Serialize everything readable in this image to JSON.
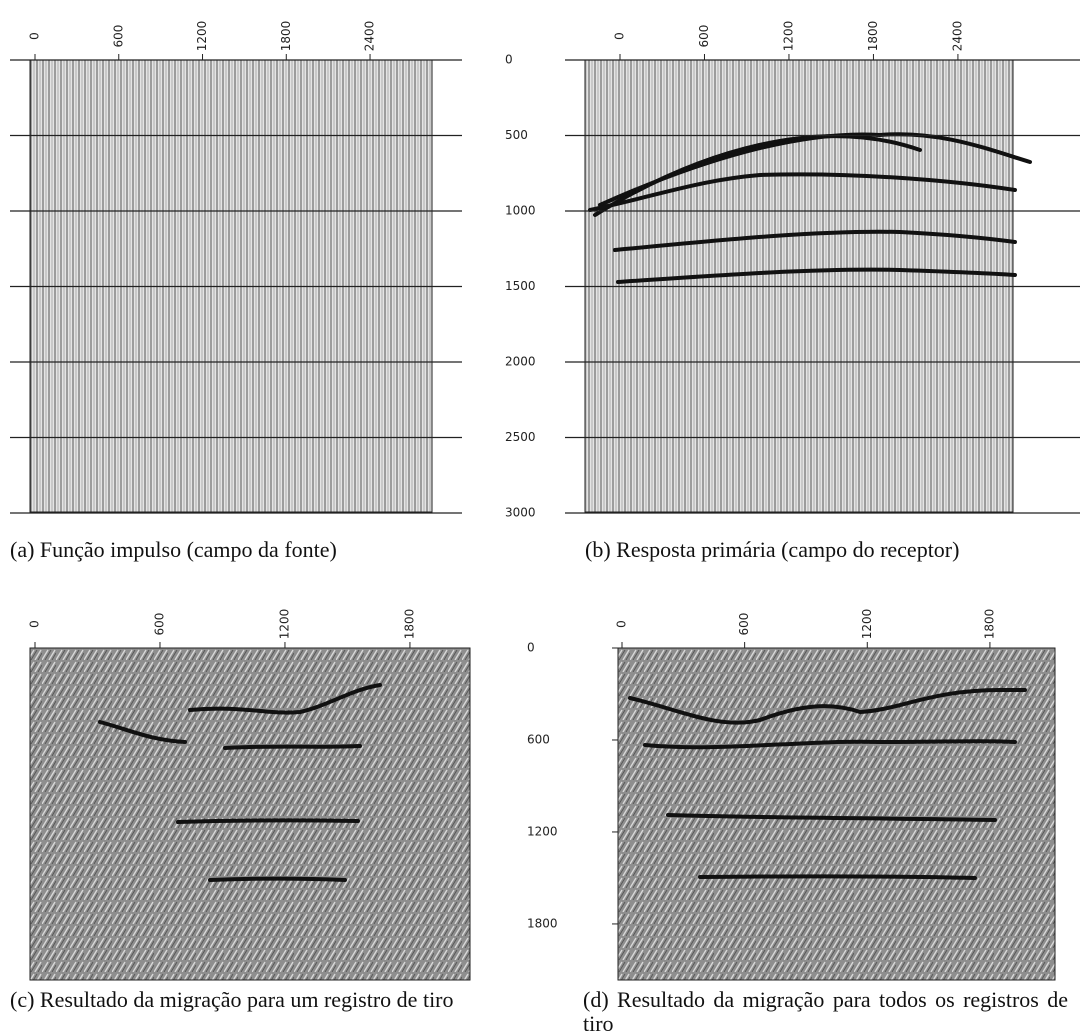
{
  "panels": [
    {
      "xticks": [
        0,
        600,
        1200,
        1800,
        2400
      ],
      "caption": "(a) Função impulso  (campo da fonte)"
    },
    {
      "xticks": [
        0,
        600,
        1200,
        1800,
        2400
      ],
      "caption": "(b) Resposta primária (campo do receptor)"
    },
    {
      "xticks": [
        0,
        600,
        1200,
        1800
      ],
      "caption": "(c) Resultado da migração para um registro de tiro"
    },
    {
      "xticks": [
        0,
        600,
        1200,
        1800
      ],
      "caption": "(d) Resultado da migração para todos os registros de tiro"
    }
  ],
  "yaxis_top": {
    "ticks": [
      0,
      500,
      1000,
      1500,
      2000,
      2500,
      3000
    ]
  },
  "yaxis_bottom": {
    "ticks": [
      0,
      600,
      1200,
      1800
    ]
  }
}
